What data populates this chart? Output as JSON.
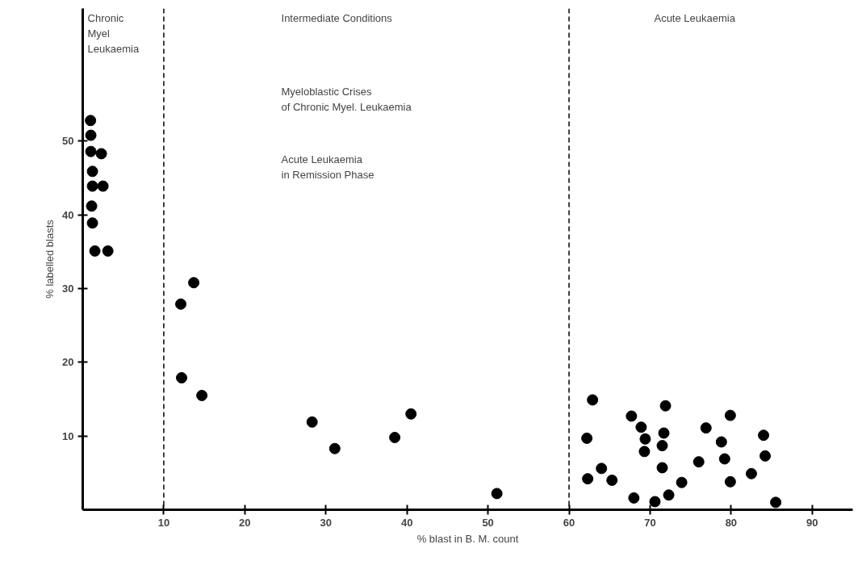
{
  "chart_data": {
    "type": "scatter",
    "xlabel": "% blast in B. M. count",
    "ylabel": "% labelled blasts",
    "xlim": [
      0,
      95
    ],
    "ylim": [
      0,
      68
    ],
    "xticks": [
      10,
      20,
      30,
      40,
      50,
      60,
      70,
      80,
      90
    ],
    "yticks": [
      10,
      20,
      30,
      40,
      50
    ],
    "grid": false,
    "marker": "circle",
    "series": [
      {
        "color": "#000000",
        "x": [
          0.96,
          1.0,
          1.0,
          2.3,
          1.2,
          1.2,
          2.5,
          1.1,
          1.2,
          1.5,
          3.1,
          13.7,
          12.1,
          12.2,
          14.7,
          28.3,
          31.1,
          38.5,
          40.5,
          51.1,
          62.9,
          62.2,
          62.3,
          64.0,
          65.3,
          67.7,
          68.0,
          68.9,
          69.4,
          69.3,
          71.9,
          71.7,
          71.5,
          71.5,
          70.6,
          72.3,
          73.9,
          76.0,
          76.9,
          78.8,
          79.2,
          79.9,
          79.9,
          82.5,
          84.0,
          84.2,
          85.5
        ],
        "values": [
          52.8,
          50.8,
          48.6,
          48.3,
          45.9,
          43.9,
          43.9,
          41.2,
          38.9,
          35.1,
          35.1,
          30.8,
          27.9,
          17.9,
          15.5,
          11.9,
          8.3,
          9.8,
          13.0,
          2.2,
          14.9,
          9.7,
          4.2,
          5.6,
          4.0,
          12.7,
          1.6,
          11.2,
          9.6,
          7.9,
          14.1,
          10.4,
          8.7,
          5.7,
          1.1,
          2.0,
          3.7,
          6.5,
          11.1,
          9.2,
          6.9,
          12.8,
          3.8,
          4.9,
          10.1,
          7.3,
          1.0
        ]
      }
    ],
    "ref_lines": [
      {
        "axis": "x",
        "value": 10,
        "color": "#000000",
        "line_style": "dashed"
      },
      {
        "axis": "x",
        "value": 60,
        "color": "#000000",
        "line_style": "dashed"
      }
    ],
    "annotations": [
      "Chronic\nMyel\nLeukaemia",
      "Intermediate Conditions",
      "Myeloblastic Crises\nof Chronic Myel. Leukaemia",
      "Acute Leukaemia\nin Remission Phase",
      "Acute Leukaemia"
    ]
  }
}
